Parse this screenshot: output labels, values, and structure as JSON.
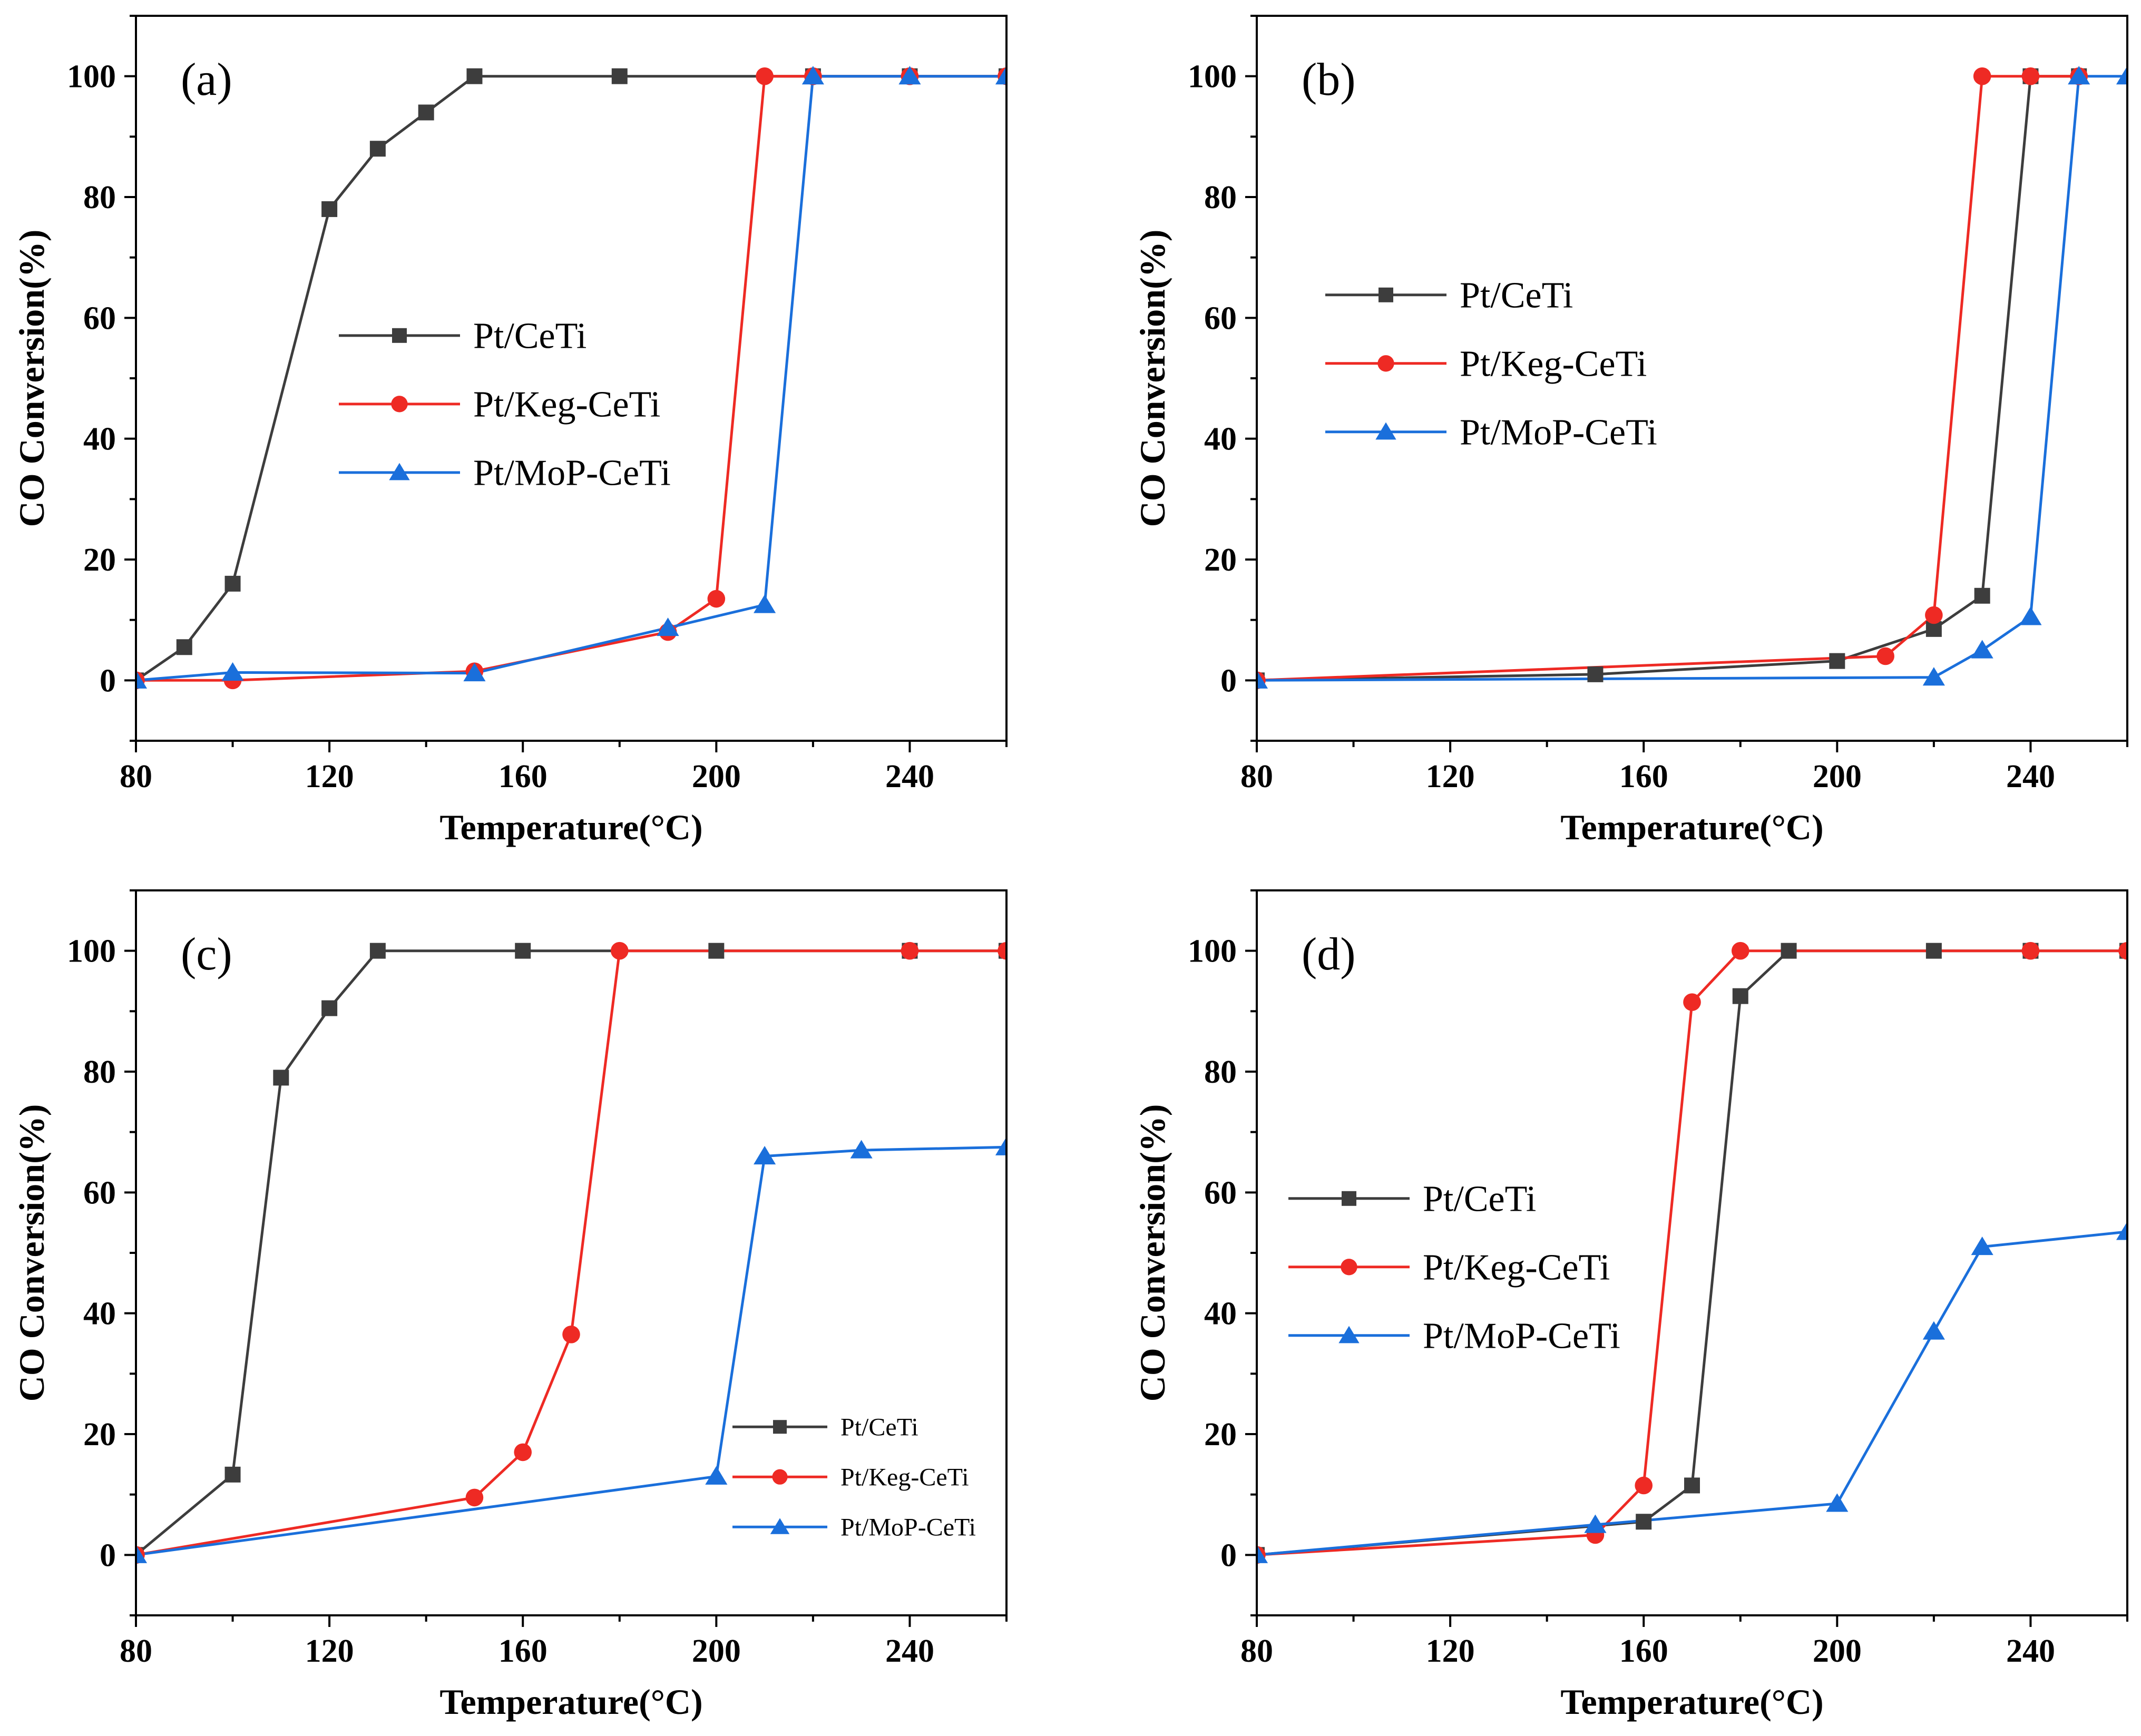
{
  "figure": {
    "colors": {
      "Pt/CeTi": "#3d3d3d",
      "Pt/Keg-CeTi": "#ee2a24",
      "Pt/MoP-CeTi": "#1a6fdb"
    },
    "markers": {
      "Pt/CeTi": "square",
      "Pt/Keg-CeTi": "circle",
      "Pt/MoP-CeTi": "triangle"
    }
  },
  "chart_data": [
    {
      "type": "line",
      "panel_label": "(a)",
      "xlabel": "Temperature(°C)",
      "ylabel": "CO Conversion(%)",
      "xlim": [
        80,
        260
      ],
      "ylim": [
        -10,
        110
      ],
      "xticks": [
        80,
        120,
        160,
        200,
        240
      ],
      "yticks": [
        0,
        20,
        40,
        60,
        80,
        100
      ],
      "legend_position": "middle-left",
      "legend_size": "large",
      "series": [
        {
          "name": "Pt/CeTi",
          "x": [
            80,
            90,
            100,
            120,
            130,
            140,
            150,
            180,
            220,
            240,
            260
          ],
          "y": [
            0,
            5.5,
            16,
            78,
            88,
            94,
            100,
            100,
            100,
            100,
            100
          ]
        },
        {
          "name": "Pt/Keg-CeTi",
          "x": [
            80,
            100,
            150,
            190,
            200,
            210,
            220,
            240,
            260
          ],
          "y": [
            0,
            0,
            1.5,
            8,
            13.5,
            100,
            100,
            100,
            100
          ]
        },
        {
          "name": "Pt/MoP-CeTi",
          "x": [
            80,
            100,
            150,
            190,
            210,
            220,
            240,
            260
          ],
          "y": [
            0,
            1.3,
            1.2,
            8.7,
            12.5,
            100,
            100,
            100
          ]
        }
      ]
    },
    {
      "type": "line",
      "panel_label": "(b)",
      "xlabel": "Temperature(°C)",
      "ylabel": "CO Conversion(%)",
      "xlim": [
        80,
        260
      ],
      "ylim": [
        -10,
        110
      ],
      "xticks": [
        80,
        120,
        160,
        200,
        240
      ],
      "yticks": [
        0,
        20,
        40,
        60,
        80,
        100
      ],
      "legend_position": "upper-left",
      "legend_size": "large",
      "series": [
        {
          "name": "Pt/CeTi",
          "x": [
            80,
            150,
            200,
            220,
            230,
            240,
            250
          ],
          "y": [
            0,
            1,
            3.2,
            8.5,
            14,
            100,
            100
          ]
        },
        {
          "name": "Pt/Keg-CeTi",
          "x": [
            80,
            210,
            220,
            230,
            240,
            250
          ],
          "y": [
            0,
            4,
            10.8,
            100,
            100,
            100
          ]
        },
        {
          "name": "Pt/MoP-CeTi",
          "x": [
            80,
            220,
            230,
            240,
            250,
            260
          ],
          "y": [
            0,
            0.5,
            5,
            10.5,
            100,
            100
          ]
        }
      ]
    },
    {
      "type": "line",
      "panel_label": "(c)",
      "xlabel": "Temperature(°C)",
      "ylabel": "CO Conversion(%)",
      "xlim": [
        80,
        260
      ],
      "ylim": [
        -10,
        110
      ],
      "xticks": [
        80,
        120,
        160,
        200,
        240
      ],
      "yticks": [
        0,
        20,
        40,
        60,
        80,
        100
      ],
      "legend_position": "lower-right",
      "legend_size": "small",
      "series": [
        {
          "name": "Pt/CeTi",
          "x": [
            80,
            100,
            110,
            120,
            130,
            160,
            200,
            240,
            260
          ],
          "y": [
            0,
            13.3,
            79,
            90.5,
            100,
            100,
            100,
            100,
            100
          ]
        },
        {
          "name": "Pt/Keg-CeTi",
          "x": [
            80,
            150,
            160,
            170,
            180,
            240,
            260
          ],
          "y": [
            0,
            9.5,
            17,
            36.5,
            100,
            100,
            100
          ]
        },
        {
          "name": "Pt/MoP-CeTi",
          "x": [
            80,
            200,
            210,
            230,
            260
          ],
          "y": [
            0,
            13,
            66,
            67,
            67.5
          ]
        }
      ]
    },
    {
      "type": "line",
      "panel_label": "(d)",
      "xlabel": "Temperature(°C)",
      "ylabel": "CO Conversion(%)",
      "xlim": [
        80,
        260
      ],
      "ylim": [
        -10,
        110
      ],
      "xticks": [
        80,
        120,
        160,
        200,
        240
      ],
      "yticks": [
        0,
        20,
        40,
        60,
        80,
        100
      ],
      "legend_position": "middle-left",
      "legend_size": "large",
      "series": [
        {
          "name": "Pt/CeTi",
          "x": [
            80,
            160,
            170,
            180,
            190,
            220,
            240,
            260
          ],
          "y": [
            0,
            5.5,
            11.5,
            92.5,
            100,
            100,
            100,
            100
          ]
        },
        {
          "name": "Pt/Keg-CeTi",
          "x": [
            80,
            150,
            160,
            170,
            180,
            240,
            260
          ],
          "y": [
            0,
            3.3,
            11.5,
            91.5,
            100,
            100,
            100
          ]
        },
        {
          "name": "Pt/MoP-CeTi",
          "x": [
            80,
            150,
            200,
            220,
            230,
            260
          ],
          "y": [
            0,
            5,
            8.5,
            37,
            51,
            53.5
          ]
        }
      ]
    }
  ]
}
